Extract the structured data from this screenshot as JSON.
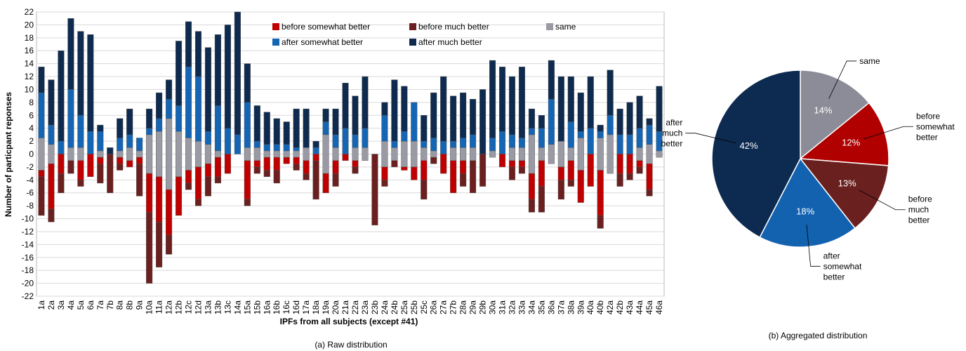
{
  "chart_data": [
    {
      "type": "diverging-bar",
      "caption": "(a) Raw distribution",
      "x_label": "IPFs from all subjects (except #41)",
      "y_label": "Number of particpant reponses",
      "categories": [
        "1a",
        "2a",
        "3a",
        "4a",
        "5a",
        "6a",
        "7a",
        "7b",
        "8a",
        "8b",
        "9a",
        "10a",
        "11a",
        "12a",
        "12b",
        "12c",
        "12d",
        "13a",
        "13b",
        "13c",
        "14a",
        "15a",
        "15b",
        "16a",
        "16b",
        "16c",
        "16d",
        "17a",
        "18a",
        "19a",
        "20a",
        "21a",
        "22a",
        "23a",
        "23b",
        "24a",
        "24b",
        "25a",
        "25b",
        "25c",
        "26a",
        "27a",
        "27b",
        "28a",
        "29a",
        "29b",
        "30a",
        "31a",
        "32a",
        "33a",
        "34a",
        "35a",
        "36a",
        "37a",
        "38a",
        "39a",
        "40a",
        "40b",
        "42a",
        "42b",
        "43a",
        "44a",
        "45a",
        "46a"
      ],
      "series": [
        {
          "name": "before somewhat better",
          "color": "#c00000",
          "side": "below",
          "values": [
            1,
            7,
            3,
            0,
            3,
            3.5,
            1,
            0,
            1,
            1,
            1,
            6,
            7,
            7,
            6,
            2,
            5,
            2,
            3,
            3,
            0,
            6,
            1,
            2,
            2,
            1,
            1,
            2,
            1,
            3,
            2,
            1,
            1,
            0,
            0,
            2,
            0,
            0.5,
            2,
            3,
            0,
            3,
            5,
            2,
            0,
            0,
            0,
            2,
            1,
            1,
            4,
            4,
            0,
            2,
            3,
            5,
            5,
            7,
            0,
            3,
            3,
            1,
            4,
            0
          ]
        },
        {
          "name": "before much better",
          "color": "#6b1f1f",
          "side": "below",
          "values": [
            6,
            2,
            3,
            2,
            1,
            0,
            3,
            6,
            1,
            0,
            5,
            11,
            7,
            3,
            0,
            1,
            1,
            3,
            1,
            0,
            0,
            1,
            1,
            1,
            2,
            0,
            1,
            1,
            6,
            0,
            2,
            0,
            1,
            0,
            11,
            1,
            1,
            0,
            0,
            3,
            1,
            0,
            0,
            2,
            5,
            5,
            0,
            0,
            2,
            1,
            2,
            4,
            0,
            3,
            1,
            0,
            0,
            2,
            0,
            2,
            1,
            1,
            1,
            0
          ]
        },
        {
          "name": "same",
          "color": "#9a9aa4",
          "side": "center",
          "values": [
            5,
            3,
            0,
            2,
            2,
            0,
            1,
            0,
            1,
            2,
            1,
            6,
            7,
            11,
            7,
            5,
            4,
            3,
            1,
            0,
            0,
            2,
            2,
            1,
            1,
            1,
            1,
            2,
            0,
            6,
            2,
            0,
            2,
            2,
            0,
            4,
            2,
            4,
            4,
            2,
            1,
            0,
            2,
            2,
            2,
            0,
            1,
            0,
            2,
            2,
            6,
            2,
            3,
            4,
            2,
            5,
            0,
            5,
            6,
            0,
            0,
            2,
            3,
            1
          ]
        },
        {
          "name": "after somewhat better",
          "color": "#1565b5",
          "side": "above",
          "values": [
            7,
            3,
            2,
            9,
            5,
            3.5,
            3,
            0,
            2,
            2,
            2,
            1,
            2,
            3,
            4,
            11,
            10,
            2,
            7,
            4,
            3,
            7,
            1,
            1,
            1,
            1,
            0.5,
            0,
            1,
            2,
            2,
            4,
            2,
            3,
            0,
            4,
            1,
            1.5,
            6,
            1,
            2,
            2,
            1,
            1.5,
            2,
            0,
            2,
            3.5,
            2,
            1.5,
            1,
            3,
            7,
            0,
            4,
            1,
            4,
            1,
            3,
            3,
            3,
            3,
            3,
            3
          ]
        },
        {
          "name": "after much better",
          "color": "#0e2a4e",
          "side": "above",
          "values": [
            4,
            7,
            14,
            11,
            13,
            15,
            1,
            1,
            3,
            4,
            0,
            3,
            4,
            3,
            10,
            7,
            7,
            13,
            11,
            16,
            19,
            6,
            5.5,
            5,
            4,
            3.5,
            6,
            6,
            1,
            2,
            4,
            7,
            6,
            8,
            0,
            2,
            9.5,
            7,
            0,
            4,
            7,
            10,
            7,
            7,
            5.5,
            10,
            12,
            10,
            9,
            11,
            3,
            2,
            6,
            10,
            7,
            6,
            8,
            1,
            7,
            4,
            5,
            5,
            1,
            7
          ]
        }
      ],
      "ylim": [
        -22,
        22
      ],
      "yticks": [
        -22,
        -20,
        -18,
        -16,
        -14,
        -12,
        -10,
        -8,
        -6,
        -4,
        -2,
        0,
        2,
        4,
        6,
        8,
        10,
        12,
        14,
        16,
        18,
        20,
        22
      ],
      "grid": true
    },
    {
      "type": "pie",
      "caption": "(b) Aggregated distribution",
      "categories": [
        "same",
        "before somewhat better",
        "before much better",
        "after somewhat better",
        "after much better"
      ],
      "values": [
        14,
        12,
        13,
        18,
        42
      ],
      "value_labels": [
        "14%",
        "12%",
        "13%",
        "18%",
        "42%"
      ],
      "colors": [
        "#8c8c98",
        "#b00000",
        "#6b2020",
        "#1262b0",
        "#0d2a50"
      ]
    }
  ]
}
